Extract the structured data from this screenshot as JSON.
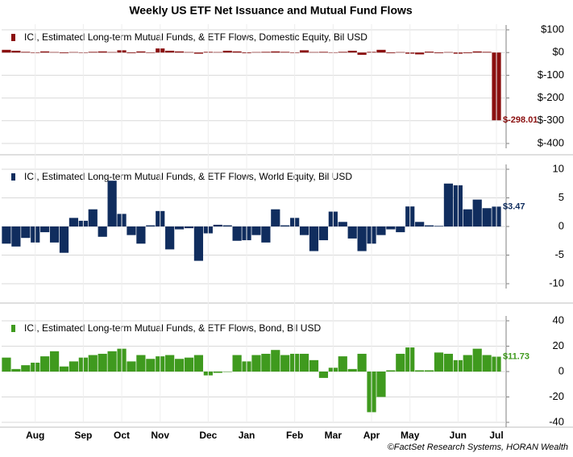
{
  "title": "Weekly US ETF Net Issuance and Mutual Fund Flows",
  "source": "©FactSet Research Systems, HORAN Wealth",
  "chart_data": [
    {
      "type": "bar",
      "series": [
        {
          "name": "ICI, Estimated Long-term Mutual Funds, & ETF Flows, Domestic Equity, Bil USD",
          "color": "#8b0f0f",
          "values": [
            12,
            8,
            3,
            -2,
            5,
            2,
            -3,
            2,
            -1,
            3,
            5,
            2,
            10,
            -3,
            5,
            -2,
            18,
            8,
            5,
            2,
            -5,
            3,
            2,
            8,
            5,
            -3,
            2,
            3,
            5,
            3,
            -2,
            10,
            2,
            3,
            1,
            3,
            8,
            -10,
            3,
            12,
            -3,
            2,
            -5,
            -8,
            4,
            -3,
            2,
            -5,
            -3,
            5,
            3,
            -298.01
          ],
          "value_labels": [
            null,
            null,
            null,
            null,
            null,
            null,
            null,
            null,
            null,
            null,
            null,
            null,
            null,
            null,
            null,
            null,
            null,
            null,
            null,
            null,
            null,
            null,
            null,
            null,
            null,
            null,
            null,
            null,
            null,
            null,
            null,
            null,
            null,
            null,
            null,
            null,
            null,
            null,
            null,
            null,
            null,
            null,
            null,
            null,
            null,
            null,
            null,
            null,
            null,
            null,
            null,
            "$-298.01"
          ]
        }
      ],
      "ylim": [
        -400,
        100
      ],
      "yticks": [
        {
          "value": 100,
          "label": "$100"
        },
        {
          "value": 0,
          "label": "$0"
        },
        {
          "value": -100,
          "label": "$-100"
        },
        {
          "value": -200,
          "label": "$-200"
        },
        {
          "value": -300,
          "label": "$-300"
        },
        {
          "value": -400,
          "label": "$-400"
        }
      ],
      "grid": true
    },
    {
      "type": "bar",
      "series": [
        {
          "name": "ICI, Estimated Long-term Mutual Funds, & ETF Flows, World Equity, Bil USD",
          "color": "#102d5e",
          "values": [
            -3,
            -3.5,
            -2,
            -2.8,
            -1,
            -2.8,
            -4.6,
            1.5,
            1,
            3,
            -1.8,
            8,
            2.2,
            -1.5,
            -3,
            0.2,
            2.7,
            -4,
            -0.5,
            -0.3,
            -6,
            -1.2,
            0.3,
            0.2,
            -2.5,
            -2.4,
            -1.5,
            -2.8,
            3,
            0.2,
            1.5,
            -1.5,
            -4.3,
            -2.4,
            2.6,
            0.8,
            -2.1,
            -4.3,
            -3,
            -1.5,
            -0.5,
            -1,
            3.5,
            0.8,
            0.2,
            0.1,
            7.5,
            7.2,
            3,
            4.7,
            3.2,
            3.47
          ],
          "value_labels": [
            null,
            null,
            null,
            null,
            null,
            null,
            null,
            null,
            null,
            null,
            null,
            null,
            null,
            null,
            null,
            null,
            null,
            null,
            null,
            null,
            null,
            null,
            null,
            null,
            null,
            null,
            null,
            null,
            null,
            null,
            null,
            null,
            null,
            null,
            null,
            null,
            null,
            null,
            null,
            null,
            null,
            null,
            null,
            null,
            null,
            null,
            null,
            null,
            null,
            null,
            null,
            "$3.47"
          ]
        }
      ],
      "ylim": [
        -10,
        10
      ],
      "yticks": [
        10,
        5,
        0,
        -5,
        -10
      ],
      "grid": true
    },
    {
      "type": "bar",
      "categories": [
        null,
        null,
        null,
        "Aug",
        null,
        null,
        null,
        null,
        "Sep",
        null,
        null,
        null,
        "Oct",
        null,
        null,
        null,
        "Nov",
        null,
        null,
        null,
        null,
        "Dec",
        null,
        null,
        null,
        "Jan",
        null,
        null,
        null,
        null,
        "Feb",
        null,
        null,
        null,
        "Mar",
        null,
        null,
        null,
        "Apr",
        null,
        null,
        null,
        "May",
        null,
        null,
        null,
        null,
        "Jun",
        null,
        null,
        null,
        "Jul"
      ],
      "series": [
        {
          "name": "ICI, Estimated Long-term Mutual Funds, & ETF Flows, Bond, Bil USD",
          "color": "#3f9a1e",
          "values": [
            11,
            2,
            5,
            7,
            12,
            16,
            4,
            8,
            11,
            13,
            14,
            16,
            18,
            8,
            13,
            10,
            12,
            13,
            10,
            11,
            13,
            -3,
            -1,
            0,
            13,
            8,
            13,
            14,
            17,
            13,
            14,
            14,
            9,
            -5,
            3,
            12,
            2,
            14,
            -32,
            -20,
            1,
            14,
            19,
            1,
            1,
            15,
            14,
            9,
            13,
            18,
            13,
            11.73
          ],
          "value_labels": [
            null,
            null,
            null,
            null,
            null,
            null,
            null,
            null,
            null,
            null,
            null,
            null,
            null,
            null,
            null,
            null,
            null,
            null,
            null,
            null,
            null,
            null,
            null,
            null,
            null,
            null,
            null,
            null,
            null,
            null,
            null,
            null,
            null,
            null,
            null,
            null,
            null,
            null,
            null,
            null,
            null,
            null,
            null,
            null,
            null,
            null,
            null,
            null,
            null,
            null,
            null,
            "$11.73"
          ]
        }
      ],
      "ylim": [
        -40,
        40
      ],
      "yticks": [
        40,
        20,
        0,
        -20,
        -40
      ],
      "grid": true
    }
  ]
}
